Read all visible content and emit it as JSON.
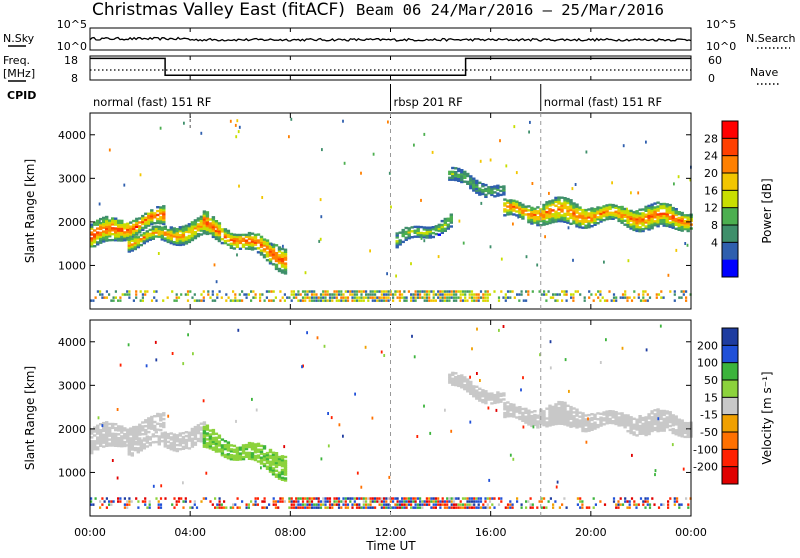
{
  "title": {
    "left": "Christmas Valley East (fitACF)",
    "right": "Beam 06  24/Mar/2016 – 25/Mar/2016"
  },
  "strip_panels": {
    "nsky_label": "N.Sky",
    "nsearch_label": "N.Search",
    "nsky_tick_top": "10^5",
    "nsky_tick_bottom": "10^0",
    "nsearch_tick_top": "10^5",
    "nsearch_tick_bottom": "10^0",
    "freq_label_1": "Freq.",
    "freq_label_2": "[MHz]",
    "freq_tick_top": "18",
    "freq_tick_bottom": "8",
    "nave_label": "Nave",
    "nave_tick_top": "60",
    "nave_tick_bottom": "0",
    "cpid_label": "CPID"
  },
  "cpid_segments": [
    {
      "label": "normal (fast) 151 RF",
      "start_h": 0,
      "end_h": 12
    },
    {
      "label": "rbsp 201 RF",
      "start_h": 12,
      "end_h": 18
    },
    {
      "label": "normal (fast) 151 RF",
      "start_h": 18,
      "end_h": 24
    }
  ],
  "axes": {
    "xlabel": "Time UT",
    "ylabel_power": "Slant Range [km]",
    "ylabel_velocity": "Slant Range [km]",
    "xticks": [
      "00:00",
      "04:00",
      "08:00",
      "12:00",
      "16:00",
      "20:00",
      "00:00"
    ],
    "yticks": [
      "1000",
      "2000",
      "3000",
      "4000"
    ]
  },
  "colorbars": {
    "power": {
      "label": "Power [dB]",
      "ticks": [
        "28",
        "24",
        "20",
        "16",
        "12",
        "8",
        "4"
      ],
      "colors": [
        "#ff0000",
        "#ff4000",
        "#ff8000",
        "#f2c600",
        "#c8de00",
        "#4caf50",
        "#3f8f6b",
        "#2f5fae",
        "#0000ff"
      ]
    },
    "velocity": {
      "label": "Velocity [m s⁻¹]",
      "ticks": [
        "200",
        "100",
        "50",
        "15",
        "-15",
        "-50",
        "-100",
        "-200"
      ],
      "colors": [
        "#1e3ca0",
        "#2050d8",
        "#3cb43c",
        "#8cd23c",
        "#c8c8c8",
        "#f0a000",
        "#ff7000",
        "#ff2000",
        "#e00000"
      ]
    }
  },
  "chart_data": {
    "type": "heatmap",
    "x_unit": "hours UT from 24/Mar/2016 00:00",
    "xlim": [
      0,
      24
    ],
    "ylim": [
      0,
      4500
    ],
    "frequency_steps": [
      {
        "from_h": 0,
        "to_h": 3.0,
        "freq_mhz": 17
      },
      {
        "from_h": 3.0,
        "to_h": 15.0,
        "freq_mhz": 10
      },
      {
        "from_h": 15.0,
        "to_h": 24,
        "freq_mhz": 17
      }
    ],
    "nave_level": 25,
    "power_regions": [
      {
        "t0": 0.0,
        "t1": 2.9,
        "r_center_start": 1650,
        "r_center_end": 2100,
        "width": 450,
        "peak_db": 28
      },
      {
        "t0": 1.5,
        "t1": 4.6,
        "r_center_start": 1550,
        "r_center_end": 1850,
        "width": 350,
        "peak_db": 24
      },
      {
        "t0": 4.5,
        "t1": 7.8,
        "r_center_start": 1900,
        "r_center_end": 1150,
        "width": 450,
        "peak_db": 28
      },
      {
        "t0": 14.3,
        "t1": 16.5,
        "r_center_start": 3050,
        "r_center_end": 2650,
        "width": 250,
        "peak_db": 12
      },
      {
        "t0": 16.5,
        "t1": 24.0,
        "r_center_start": 2250,
        "r_center_end": 2050,
        "width": 450,
        "peak_db": 26
      },
      {
        "t0": 12.2,
        "t1": 14.4,
        "r_center_start": 1550,
        "r_center_end": 2000,
        "width": 300,
        "peak_db": 16
      }
    ],
    "velocity_regions": [
      {
        "t0": 0.0,
        "t1": 2.9,
        "r_center_start": 1700,
        "r_center_end": 2100,
        "width": 450,
        "velocity": 0
      },
      {
        "t0": 1.5,
        "t1": 4.6,
        "r_center_start": 1600,
        "r_center_end": 1850,
        "width": 350,
        "velocity": 0
      },
      {
        "t0": 4.5,
        "t1": 7.8,
        "r_center_start": 1750,
        "r_center_end": 1150,
        "width": 450,
        "velocity": 40
      },
      {
        "t0": 14.3,
        "t1": 16.5,
        "r_center_start": 3100,
        "r_center_end": 2650,
        "width": 250,
        "velocity": 0
      },
      {
        "t0": 16.5,
        "t1": 24.0,
        "r_center_start": 2350,
        "r_center_end": 2050,
        "width": 400,
        "velocity": 0
      }
    ],
    "ground_band_km": [
      150,
      400
    ]
  }
}
